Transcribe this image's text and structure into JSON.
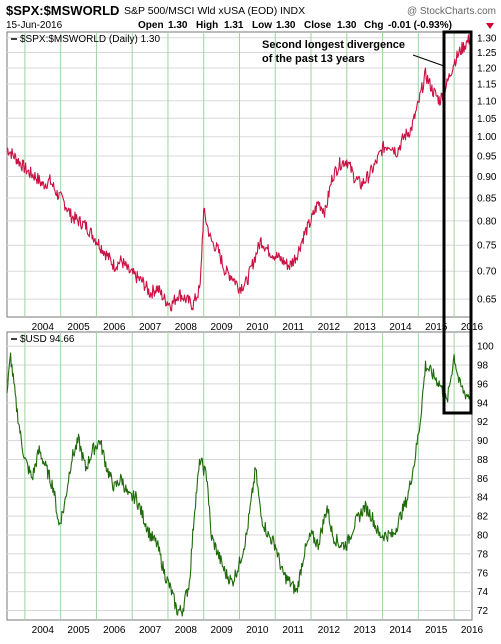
{
  "header": {
    "symbol": "$SPX:$MSWORLD",
    "description": "S&P 500/MSCI Wld xUSA (EOD)",
    "type": "INDX",
    "date": "15-Jun-2016",
    "open_label": "Open",
    "open": "1.30",
    "high_label": "High",
    "high": "1.31",
    "low_label": "Low",
    "low": "1.30",
    "close_label": "Close",
    "close": "1.30",
    "chg_label": "Chg",
    "chg": "-0.01 (-0.93%)",
    "watermark": "@ StockCharts.com"
  },
  "colors": {
    "ratio_line": "#cc1144",
    "usd_line": "#1f6a0a",
    "grid_vertical": "#9fd59f",
    "grid_horizontal": "#d8d8d8",
    "change_negative": "#cc0033"
  },
  "chart_data": [
    {
      "type": "line",
      "legend": "$SPX:$MSWORLD (Daily) 1.30",
      "x_ticks": [
        "2004",
        "2005",
        "2006",
        "2007",
        "2008",
        "2009",
        "2010",
        "2011",
        "2012",
        "2013",
        "2014",
        "2015",
        "2016"
      ],
      "y_ticks": [
        0.65,
        0.7,
        0.75,
        0.8,
        0.85,
        0.9,
        0.95,
        1.0,
        1.05,
        1.1,
        1.15,
        1.2,
        1.25,
        1.3
      ],
      "y_scale": "log",
      "ylim": [
        0.62,
        1.32
      ],
      "xlim": [
        2003.5,
        2016.5
      ],
      "series": [
        {
          "x": [
            2003.5,
            2003.7,
            2003.9,
            2004.1,
            2004.3,
            2004.5,
            2004.7,
            2004.9,
            2005.1,
            2005.3,
            2005.5,
            2005.7,
            2005.9,
            2006.1,
            2006.3,
            2006.5,
            2006.7,
            2006.9,
            2007.1,
            2007.3,
            2007.5,
            2007.7,
            2007.9,
            2008.1,
            2008.3,
            2008.5,
            2008.7,
            2008.9,
            2009.0,
            2009.2,
            2009.4,
            2009.6,
            2009.8,
            2010.0,
            2010.2,
            2010.4,
            2010.6,
            2010.8,
            2011.0,
            2011.2,
            2011.4,
            2011.6,
            2011.8,
            2012.0,
            2012.2,
            2012.4,
            2012.6,
            2012.8,
            2013.0,
            2013.2,
            2013.4,
            2013.6,
            2013.8,
            2014.0,
            2014.2,
            2014.4,
            2014.6,
            2014.8,
            2015.0,
            2015.2,
            2015.4,
            2015.6,
            2015.8,
            2016.0,
            2016.2,
            2016.46
          ],
          "y": [
            0.97,
            0.95,
            0.93,
            0.91,
            0.9,
            0.88,
            0.89,
            0.86,
            0.84,
            0.81,
            0.8,
            0.79,
            0.77,
            0.75,
            0.73,
            0.71,
            0.72,
            0.7,
            0.69,
            0.68,
            0.66,
            0.67,
            0.65,
            0.64,
            0.66,
            0.65,
            0.64,
            0.67,
            0.82,
            0.76,
            0.74,
            0.7,
            0.69,
            0.67,
            0.68,
            0.72,
            0.76,
            0.74,
            0.73,
            0.72,
            0.71,
            0.73,
            0.77,
            0.8,
            0.84,
            0.82,
            0.9,
            0.93,
            0.94,
            0.9,
            0.88,
            0.9,
            0.93,
            0.97,
            0.98,
            0.96,
            1.0,
            1.02,
            1.09,
            1.18,
            1.13,
            1.1,
            1.15,
            1.22,
            1.26,
            1.3
          ]
        }
      ]
    },
    {
      "type": "line",
      "legend": "$USD 94.66",
      "x_ticks": [
        "2004",
        "2005",
        "2006",
        "2007",
        "2008",
        "2009",
        "2010",
        "2011",
        "2012",
        "2013",
        "2014",
        "2015",
        "2016"
      ],
      "y_ticks": [
        72,
        74,
        76,
        78,
        80,
        82,
        84,
        86,
        88,
        90,
        92,
        94,
        96,
        98,
        100
      ],
      "ylim": [
        71,
        101.5
      ],
      "xlim": [
        2003.5,
        2016.5
      ],
      "series": [
        {
          "x": [
            2003.5,
            2003.6,
            2003.75,
            2003.9,
            2004.0,
            2004.2,
            2004.4,
            2004.6,
            2004.8,
            2004.95,
            2005.1,
            2005.3,
            2005.5,
            2005.7,
            2005.9,
            2006.1,
            2006.3,
            2006.5,
            2006.7,
            2006.9,
            2007.1,
            2007.3,
            2007.5,
            2007.7,
            2007.9,
            2008.1,
            2008.25,
            2008.4,
            2008.6,
            2008.75,
            2008.9,
            2009.1,
            2009.2,
            2009.4,
            2009.6,
            2009.8,
            2010.0,
            2010.2,
            2010.45,
            2010.6,
            2010.8,
            2011.0,
            2011.2,
            2011.4,
            2011.6,
            2011.8,
            2012.0,
            2012.2,
            2012.45,
            2012.6,
            2012.8,
            2013.0,
            2013.2,
            2013.5,
            2013.7,
            2013.9,
            2014.1,
            2014.3,
            2014.5,
            2014.7,
            2014.9,
            2015.05,
            2015.2,
            2015.4,
            2015.6,
            2015.8,
            2016.0,
            2016.15,
            2016.3,
            2016.46
          ],
          "y": [
            95,
            99,
            94,
            90,
            88,
            86,
            89,
            87,
            85,
            81,
            83,
            88,
            90,
            87,
            89,
            90,
            87,
            85,
            86,
            84,
            84,
            82,
            80,
            79,
            76,
            74,
            72,
            72,
            75,
            83,
            88,
            86,
            80,
            78,
            76,
            75,
            77,
            80,
            87,
            82,
            80,
            79,
            76,
            75,
            74,
            78,
            80,
            79,
            83,
            80,
            79,
            79,
            81,
            83,
            82,
            80,
            80,
            80,
            82,
            84,
            88,
            92,
            98,
            97,
            96,
            94,
            99,
            96,
            95,
            94.66
          ]
        }
      ]
    }
  ]
}
